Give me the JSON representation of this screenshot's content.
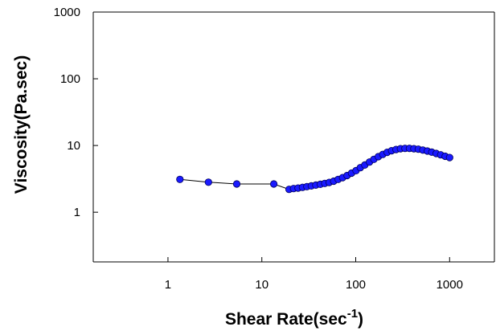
{
  "chart_data": {
    "type": "scatter",
    "title": "",
    "xlabel": "Shear Rate(sec",
    "xlabel_superscript": "-1",
    "xlabel_suffix": ")",
    "ylabel": "Viscosity(Pa.sec)",
    "x_scale": "log",
    "y_scale": "log",
    "xlim": [
      0.16,
      3000
    ],
    "ylim": [
      0.18,
      1000
    ],
    "x_ticks": [
      {
        "value": 1,
        "label": "1"
      },
      {
        "value": 10,
        "label": "10"
      },
      {
        "value": 100,
        "label": "100"
      },
      {
        "value": 1000,
        "label": "1000"
      }
    ],
    "y_ticks": [
      {
        "value": 1,
        "label": "1"
      },
      {
        "value": 10,
        "label": "10"
      },
      {
        "value": 100,
        "label": "100"
      },
      {
        "value": 1000,
        "label": "1000"
      }
    ],
    "grid": false,
    "legend": "none",
    "colors": {
      "marker_fill": "#1a1aff",
      "marker_stroke": "#00005a",
      "line": "#000000",
      "axis": "#000000"
    },
    "series": [
      {
        "x": [
          1.34,
          2.7,
          5.4,
          13.4,
          19.5,
          21.8,
          24.3,
          27.1,
          30.2,
          33.7,
          37.6,
          42.0,
          46.8,
          52.2,
          58.3,
          65.0,
          72.5,
          80.9,
          90.3,
          100.7,
          112,
          125,
          140,
          156,
          174,
          194,
          216,
          241,
          269,
          300,
          335,
          374,
          417,
          465,
          519,
          579,
          646,
          720,
          804,
          897,
          1000
        ],
        "y": [
          3.1,
          2.82,
          2.65,
          2.65,
          2.2,
          2.26,
          2.3,
          2.36,
          2.42,
          2.48,
          2.55,
          2.62,
          2.7,
          2.79,
          2.92,
          3.1,
          3.3,
          3.55,
          3.85,
          4.2,
          4.65,
          5.1,
          5.65,
          6.2,
          6.8,
          7.35,
          7.9,
          8.35,
          8.7,
          8.95,
          9.05,
          9.05,
          8.95,
          8.8,
          8.55,
          8.25,
          7.95,
          7.6,
          7.25,
          6.9,
          6.6
        ]
      }
    ]
  }
}
